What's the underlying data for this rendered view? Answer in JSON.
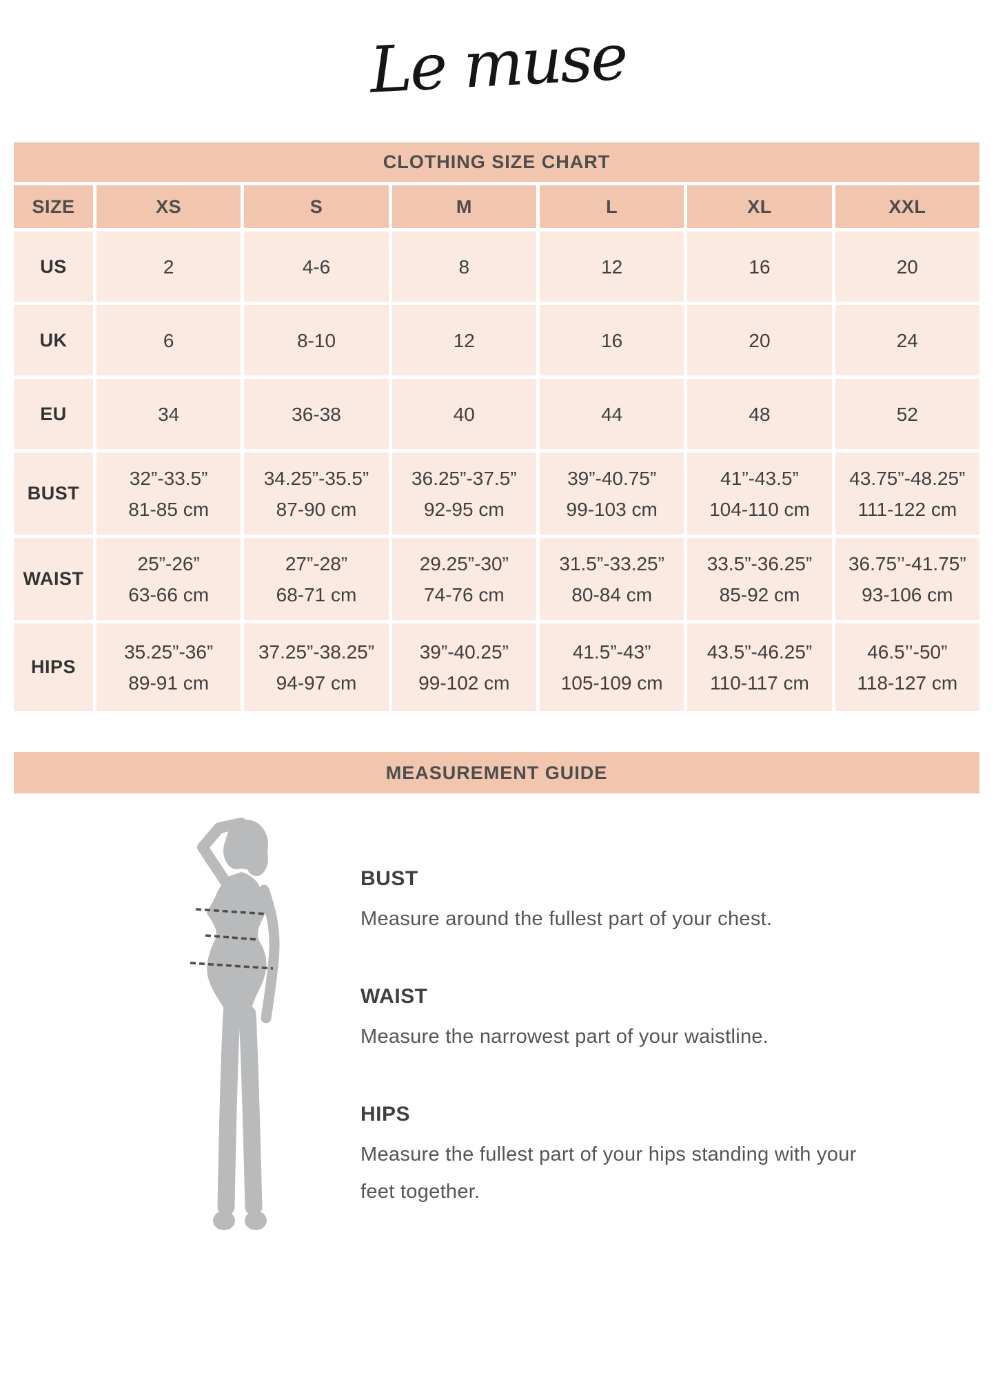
{
  "brand": {
    "logo_text": "Le muse"
  },
  "size_chart": {
    "title": "CLOTHING SIZE CHART",
    "corner_label": "SIZE",
    "columns": [
      "XS",
      "S",
      "M",
      "L",
      "XL",
      "XXL"
    ],
    "rows": [
      {
        "label": "US",
        "values": [
          "2",
          "4-6",
          "8",
          "12",
          "16",
          "20"
        ]
      },
      {
        "label": "UK",
        "values": [
          "6",
          "8-10",
          "12",
          "16",
          "20",
          "24"
        ]
      },
      {
        "label": "EU",
        "values": [
          "34",
          "36-38",
          "40",
          "44",
          "48",
          "52"
        ]
      },
      {
        "label": "BUST",
        "values": [
          {
            "in": "32”-33.5”",
            "cm": "81-85 cm"
          },
          {
            "in": "34.25”-35.5”",
            "cm": "87-90 cm"
          },
          {
            "in": "36.25”-37.5”",
            "cm": "92-95 cm"
          },
          {
            "in": "39”-40.75”",
            "cm": "99-103 cm"
          },
          {
            "in": "41”-43.5”",
            "cm": "104-110 cm"
          },
          {
            "in": "43.75”-48.25”",
            "cm": "111-122 cm"
          }
        ]
      },
      {
        "label": "WAIST",
        "values": [
          {
            "in": "25”-26”",
            "cm": "63-66 cm"
          },
          {
            "in": "27”-28”",
            "cm": "68-71 cm"
          },
          {
            "in": "29.25”-30”",
            "cm": "74-76 cm"
          },
          {
            "in": "31.5”-33.25”",
            "cm": "80-84 cm"
          },
          {
            "in": "33.5”-36.25”",
            "cm": "85-92 cm"
          },
          {
            "in": "36.75’’-41.75”",
            "cm": "93-106 cm"
          }
        ]
      },
      {
        "label": "HIPS",
        "values": [
          {
            "in": "35.25”-36”",
            "cm": "89-91 cm"
          },
          {
            "in": "37.25”-38.25”",
            "cm": "94-97 cm"
          },
          {
            "in": "39”-40.25”",
            "cm": "99-102 cm"
          },
          {
            "in": "41.5”-43”",
            "cm": "105-109 cm"
          },
          {
            "in": "43.5”-46.25”",
            "cm": "110-117 cm"
          },
          {
            "in": "46.5’’-50”",
            "cm": "118-127 cm"
          }
        ]
      }
    ]
  },
  "measurement_guide": {
    "title": "MEASUREMENT GUIDE",
    "figure": "female-silhouette-with-bust-waist-hip-lines",
    "items": [
      {
        "heading": "BUST",
        "description": "Measure around the fullest part of your chest."
      },
      {
        "heading": "WAIST",
        "description": "Measure the narrowest part of your waistline."
      },
      {
        "heading": "HIPS",
        "description": "Measure the fullest part of your hips standing with your feet together."
      }
    ]
  },
  "colors": {
    "accent_salmon": "#f2c5ae",
    "cell_pink": "#faeae2",
    "text_dark": "#3f3f3f",
    "silhouette_gray": "#b9babc"
  }
}
